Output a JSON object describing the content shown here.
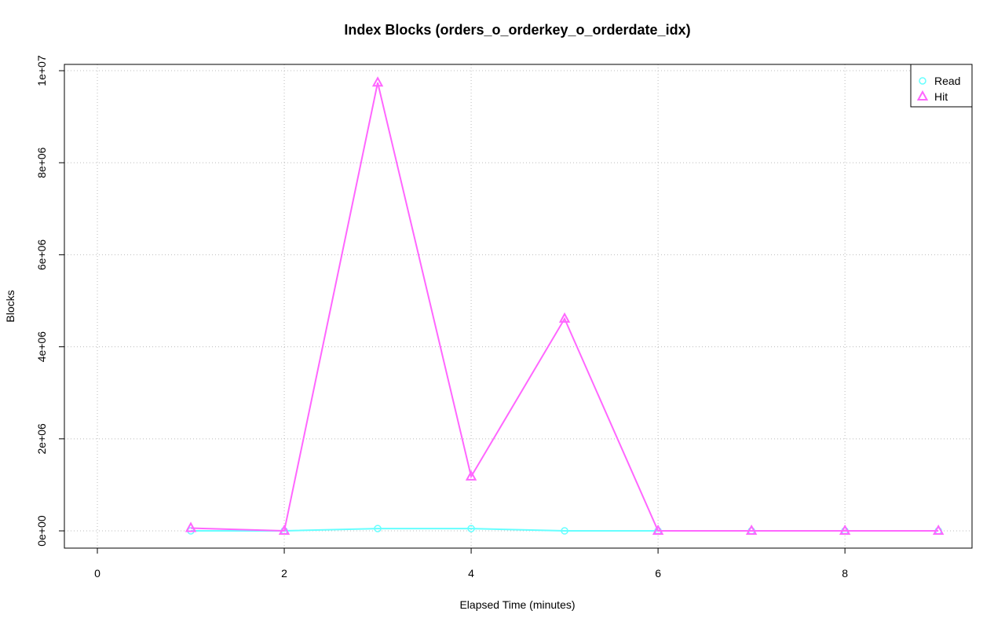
{
  "chart_data": {
    "type": "line",
    "title": "Index Blocks (orders_o_orderkey_o_orderdate_idx)",
    "x_label": "Elapsed Time (minutes)",
    "y_label": "Blocks",
    "x": [
      1,
      2,
      3,
      4,
      5,
      6,
      7,
      8,
      9
    ],
    "series": [
      {
        "name": "Read",
        "color": "#66ffff",
        "marker": "circle",
        "values": [
          0,
          0,
          50000,
          50000,
          0,
          0,
          0,
          0,
          0
        ]
      },
      {
        "name": "Hit",
        "color": "#ff66ff",
        "marker": "triangle",
        "values": [
          60000,
          0,
          9740000,
          1180000,
          4610000,
          0,
          0,
          0,
          0
        ]
      }
    ],
    "xlim": [
      -0.353,
      9.36
    ],
    "ylim": [
      -375000,
      10137000
    ],
    "xticks": [
      0,
      2,
      4,
      6,
      8
    ],
    "yticks": [
      {
        "value": 0,
        "label": "0e+00"
      },
      {
        "value": 2000000,
        "label": "2e+06"
      },
      {
        "value": 4000000,
        "label": "4e+06"
      },
      {
        "value": 6000000,
        "label": "6e+06"
      },
      {
        "value": 8000000,
        "label": "8e+06"
      },
      {
        "value": 10000000,
        "label": "1e+07"
      }
    ],
    "grid": true,
    "legend_position": "top-right"
  }
}
